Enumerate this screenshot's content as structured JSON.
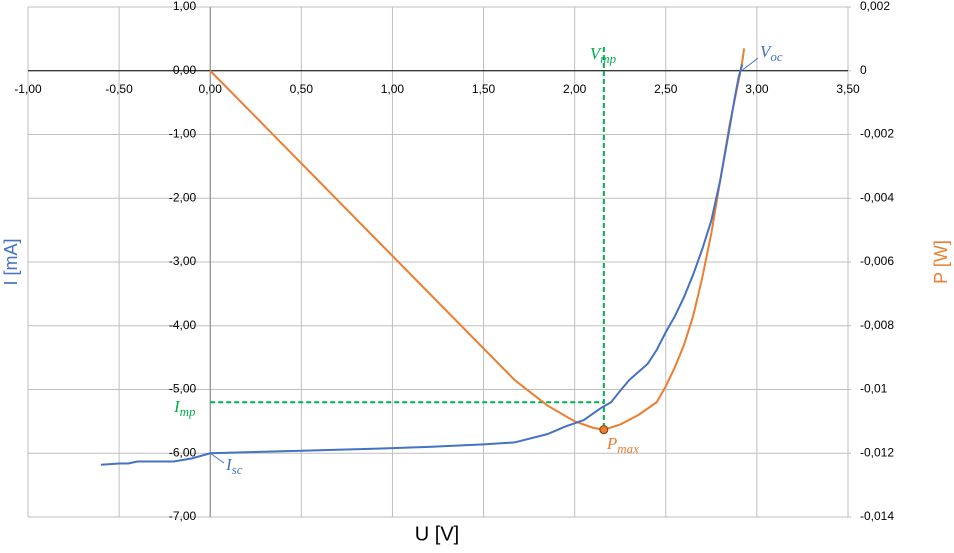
{
  "chart_data": {
    "type": "line",
    "x_label": "U [V]",
    "y_label": "I [mA]",
    "y2_label": "P [W]",
    "xlim": [
      -1,
      3.5
    ],
    "xticks": [
      {
        "value": -1,
        "label": "-1,00"
      },
      {
        "value": -0.5,
        "label": "-0,50"
      },
      {
        "value": 0,
        "label": "0,00"
      },
      {
        "value": 0.5,
        "label": "0,50"
      },
      {
        "value": 1,
        "label": "1,00"
      },
      {
        "value": 1.5,
        "label": "1,50"
      },
      {
        "value": 2,
        "label": "2,00"
      },
      {
        "value": 2.5,
        "label": "2,50"
      },
      {
        "value": 3,
        "label": "3,00"
      },
      {
        "value": 3.5,
        "label": "3,50"
      }
    ],
    "ylim": [
      -7,
      1
    ],
    "yticks": [
      {
        "value": 1,
        "label": "1,00"
      },
      {
        "value": 0,
        "label": "0,00"
      },
      {
        "value": -1,
        "label": "-1,00"
      },
      {
        "value": -2,
        "label": "-2,00"
      },
      {
        "value": -3,
        "label": "-3,00"
      },
      {
        "value": -4,
        "label": "-4,00"
      },
      {
        "value": -5,
        "label": "-5,00"
      },
      {
        "value": -6,
        "label": "-6,00"
      },
      {
        "value": -7,
        "label": "-7,00"
      }
    ],
    "y2lim": [
      -0.014,
      0.002
    ],
    "y2ticks": [
      {
        "value": 0.002,
        "label": "0,002"
      },
      0,
      {
        "value": -0.002,
        "label": "-0,002"
      },
      {
        "value": -0.004,
        "label": "-0,004"
      },
      {
        "value": -0.006,
        "label": "-0,006"
      },
      {
        "value": -0.008,
        "label": "-0,008"
      },
      {
        "value": -0.01,
        "label": "-0,01"
      },
      {
        "value": -0.012,
        "label": "-0,012"
      },
      {
        "value": -0.014,
        "label": "-0,014"
      }
    ],
    "grid": true,
    "series": [
      {
        "color": "#4472c4",
        "axis": "y",
        "x": [
          -0.6,
          -0.5,
          -0.45,
          -0.4,
          -0.3,
          -0.2,
          -0.1,
          0,
          0.5,
          1.0,
          1.2,
          1.5,
          1.67,
          1.85,
          1.95,
          2.05,
          2.1,
          2.15,
          2.2,
          2.25,
          2.3,
          2.4,
          2.45,
          2.5,
          2.55,
          2.6,
          2.65,
          2.7,
          2.75,
          2.8,
          2.85,
          2.88,
          2.9,
          2.92
        ],
        "values": [
          -6.18,
          -6.16,
          -6.16,
          -6.13,
          -6.13,
          -6.13,
          -6.08,
          -6.0,
          -5.96,
          -5.92,
          -5.9,
          -5.86,
          -5.83,
          -5.7,
          -5.58,
          -5.48,
          -5.38,
          -5.28,
          -5.2,
          -5.02,
          -4.85,
          -4.6,
          -4.38,
          -4.1,
          -3.85,
          -3.55,
          -3.2,
          -2.8,
          -2.35,
          -1.7,
          -0.9,
          -0.4,
          -0.1,
          0.1
        ]
      },
      {
        "color": "#ed7d31",
        "axis": "y2",
        "x": [
          0,
          1.67,
          1.85,
          2.0,
          2.1,
          2.16,
          2.25,
          2.35,
          2.45,
          2.5,
          2.55,
          2.6,
          2.65,
          2.7,
          2.75,
          2.8,
          2.85,
          2.9,
          2.92,
          2.93
        ],
        "values": [
          0,
          -0.0097,
          -0.0105,
          -0.011,
          -0.0112,
          -0.01126,
          -0.0111,
          -0.0108,
          -0.0104,
          -0.0099,
          -0.0093,
          -0.0086,
          -0.0077,
          -0.0065,
          -0.0051,
          -0.0034,
          -0.0017,
          -0.0003,
          0.0003,
          0.0007
        ]
      }
    ],
    "annotations": [
      {
        "main": "V",
        "sub": "mp"
      },
      {
        "main": "I",
        "sub": "mp"
      },
      {
        "main": "P",
        "sub": "max"
      },
      {
        "main": "I",
        "sub": "sc"
      },
      {
        "main": "V",
        "sub": "oc"
      }
    ],
    "mpp": {
      "x": 2.16,
      "y": -5.2,
      "p": -0.01126
    }
  }
}
